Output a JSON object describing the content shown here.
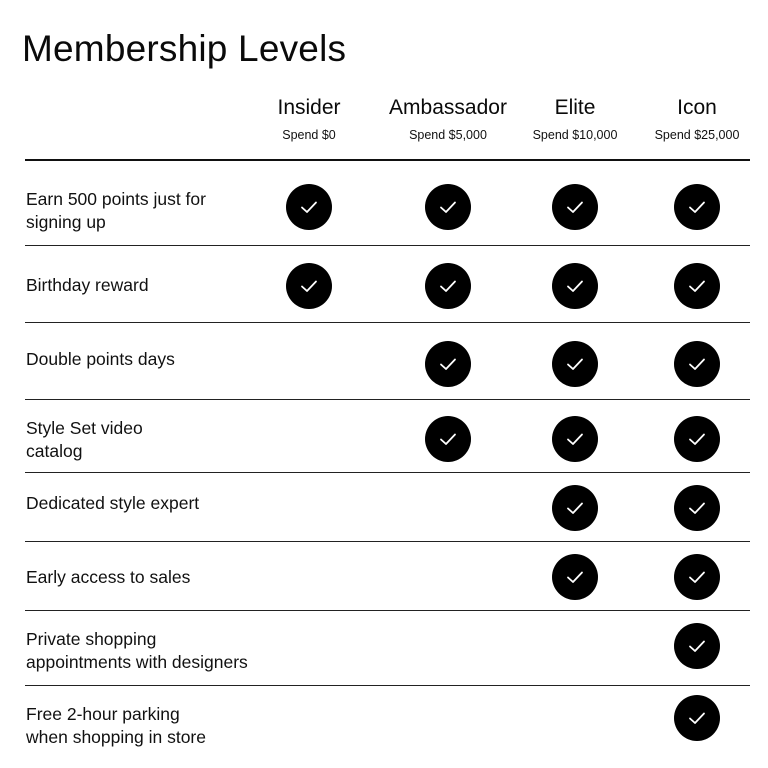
{
  "title": "Membership Levels",
  "tiers": [
    {
      "name": "Insider",
      "spend": "Spend $0"
    },
    {
      "name": "Ambassador",
      "spend": "Spend $5,000"
    },
    {
      "name": "Elite",
      "spend": "Spend $10,000"
    },
    {
      "name": "Icon",
      "spend": "Spend $25,000"
    }
  ],
  "benefits": [
    {
      "label": "Earn 500 points just for\nsigning up",
      "included": [
        true,
        true,
        true,
        true
      ]
    },
    {
      "label": "Birthday reward",
      "included": [
        true,
        true,
        true,
        true
      ]
    },
    {
      "label": "Double points days",
      "included": [
        false,
        true,
        true,
        true
      ]
    },
    {
      "label": "Style Set video\ncatalog",
      "included": [
        false,
        true,
        true,
        true
      ]
    },
    {
      "label": "Dedicated style expert",
      "included": [
        false,
        false,
        true,
        true
      ]
    },
    {
      "label": "Early access to sales",
      "included": [
        false,
        false,
        true,
        true
      ]
    },
    {
      "label": "Private shopping\nappointments with designers",
      "included": [
        false,
        false,
        false,
        true
      ]
    },
    {
      "label": "Free 2-hour parking\nwhen shopping in store",
      "included": [
        false,
        false,
        false,
        true
      ]
    }
  ],
  "check_icon": "checkmark-circle-icon"
}
